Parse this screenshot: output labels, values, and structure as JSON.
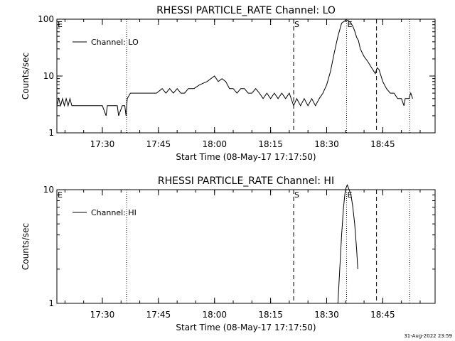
{
  "footer": {
    "timestamp": "31-Aug-2022 23:59"
  },
  "chart_data": [
    {
      "type": "line",
      "title": "RHESSI PARTICLE_RATE Channel: LO",
      "xlabel": "Start Time (08-May-17 17:17:50)",
      "ylabel": "Counts/sec",
      "y_scale": "log",
      "xlim": [
        "17:17:50",
        "18:59:00"
      ],
      "ylim": [
        1,
        100
      ],
      "x_ticks": [
        "17:30",
        "17:45",
        "18:00",
        "18:15",
        "18:30",
        "18:45"
      ],
      "y_ticks": [
        "1",
        "10",
        "100"
      ],
      "grid": false,
      "legend": {
        "placement": "top-left",
        "entries": [
          "Channel: LO"
        ]
      },
      "markers": [
        {
          "label": "E",
          "time": "17:17:50",
          "style": "dotted"
        },
        {
          "label": "",
          "time": "17:36:30",
          "style": "dotted"
        },
        {
          "label": "S",
          "time": "18:21:10",
          "style": "dashed"
        },
        {
          "label": "E",
          "time": "18:35:20",
          "style": "dotted"
        },
        {
          "label": "",
          "time": "18:43:20",
          "style": "dashed"
        },
        {
          "label": "",
          "time": "18:52:10",
          "style": "dotted"
        }
      ],
      "series": [
        {
          "name": "Channel: LO",
          "x": [
            "17:17:50",
            "17:18:20",
            "17:18:50",
            "17:19:20",
            "17:19:50",
            "17:20:20",
            "17:20:50",
            "17:21:20",
            "17:21:50",
            "17:22:30",
            "17:24:00",
            "17:26:00",
            "17:28:00",
            "17:30:00",
            "17:31:00",
            "17:31:20",
            "17:32:00",
            "17:34:00",
            "17:34:20",
            "17:35:20",
            "17:36:00",
            "17:36:20",
            "17:36:40",
            "17:37:30",
            "17:38:30",
            "17:40:00",
            "17:42:00",
            "17:43:30",
            "17:44:30",
            "17:46:00",
            "17:47:00",
            "17:48:00",
            "17:49:00",
            "17:50:00",
            "17:51:00",
            "17:52:00",
            "17:53:00",
            "17:54:30",
            "17:56:00",
            "17:58:00",
            "18:00:00",
            "18:01:00",
            "18:02:00",
            "18:03:00",
            "18:04:00",
            "18:05:00",
            "18:06:00",
            "18:07:00",
            "18:08:00",
            "18:09:00",
            "18:10:00",
            "18:11:00",
            "18:12:00",
            "18:13:00",
            "18:14:00",
            "18:15:00",
            "18:16:00",
            "18:17:00",
            "18:18:00",
            "18:19:00",
            "18:20:00",
            "18:21:10",
            "18:22:00",
            "18:23:00",
            "18:24:00",
            "18:25:00",
            "18:26:00",
            "18:27:00",
            "18:28:00",
            "18:29:00",
            "18:30:00",
            "18:31:00",
            "18:32:00",
            "18:33:00",
            "18:34:00",
            "18:35:00",
            "18:35:40",
            "18:36:30",
            "18:37:00",
            "18:37:30",
            "18:38:00",
            "18:38:30",
            "18:39:00",
            "18:40:00",
            "18:41:00",
            "18:42:00",
            "18:43:00",
            "18:43:30",
            "18:44:00",
            "18:45:00",
            "18:46:00",
            "18:47:00",
            "18:48:00",
            "18:49:00",
            "18:50:00",
            "18:50:40",
            "18:51:00",
            "18:51:40",
            "18:52:00",
            "18:52:30",
            "18:53:00"
          ],
          "values": [
            3,
            4,
            3,
            4,
            3,
            4,
            3,
            4,
            3,
            3,
            3,
            3,
            3,
            3,
            2,
            3,
            3,
            3,
            2,
            3,
            3,
            2,
            4,
            5,
            5,
            5,
            5,
            5,
            5,
            6,
            5,
            6,
            5,
            6,
            5,
            5,
            6,
            6,
            7,
            8,
            10,
            8,
            9,
            8,
            6,
            6,
            5,
            6,
            6,
            5,
            5,
            6,
            5,
            4,
            5,
            4,
            5,
            4,
            5,
            4,
            5,
            3,
            4,
            3,
            4,
            3,
            4,
            3,
            4,
            5,
            7,
            12,
            25,
            50,
            85,
            95,
            96,
            85,
            75,
            62,
            48,
            42,
            30,
            22,
            18,
            14,
            11,
            14,
            13,
            8,
            6,
            5,
            5,
            4,
            4,
            3,
            4,
            4,
            4,
            5,
            4
          ]
        }
      ]
    },
    {
      "type": "line",
      "title": "RHESSI PARTICLE_RATE Channel: HI",
      "xlabel": "Start Time (08-May-17 17:17:50)",
      "ylabel": "Counts/sec",
      "y_scale": "log",
      "xlim": [
        "17:17:50",
        "18:59:00"
      ],
      "ylim": [
        1,
        10
      ],
      "x_ticks": [
        "17:30",
        "17:45",
        "18:00",
        "18:15",
        "18:30",
        "18:45"
      ],
      "y_ticks": [
        "1",
        "10"
      ],
      "grid": false,
      "legend": {
        "placement": "top-left",
        "entries": [
          "Channel: HI"
        ]
      },
      "markers": [
        {
          "label": "E",
          "time": "17:17:50",
          "style": "dotted"
        },
        {
          "label": "",
          "time": "17:36:30",
          "style": "dotted"
        },
        {
          "label": "S",
          "time": "18:21:10",
          "style": "dashed"
        },
        {
          "label": "E",
          "time": "18:35:20",
          "style": "dotted"
        },
        {
          "label": "",
          "time": "18:43:20",
          "style": "dashed"
        },
        {
          "label": "",
          "time": "18:52:10",
          "style": "dotted"
        }
      ],
      "series": [
        {
          "name": "Channel: HI",
          "x": [
            "18:33:00",
            "18:33:30",
            "18:34:00",
            "18:34:30",
            "18:35:00",
            "18:35:30",
            "18:36:00",
            "18:36:30",
            "18:37:00",
            "18:37:30",
            "18:38:00",
            "18:38:20"
          ],
          "values": [
            1,
            2,
            4,
            7,
            10,
            11,
            10,
            9,
            7,
            5,
            3,
            2
          ]
        }
      ]
    }
  ]
}
